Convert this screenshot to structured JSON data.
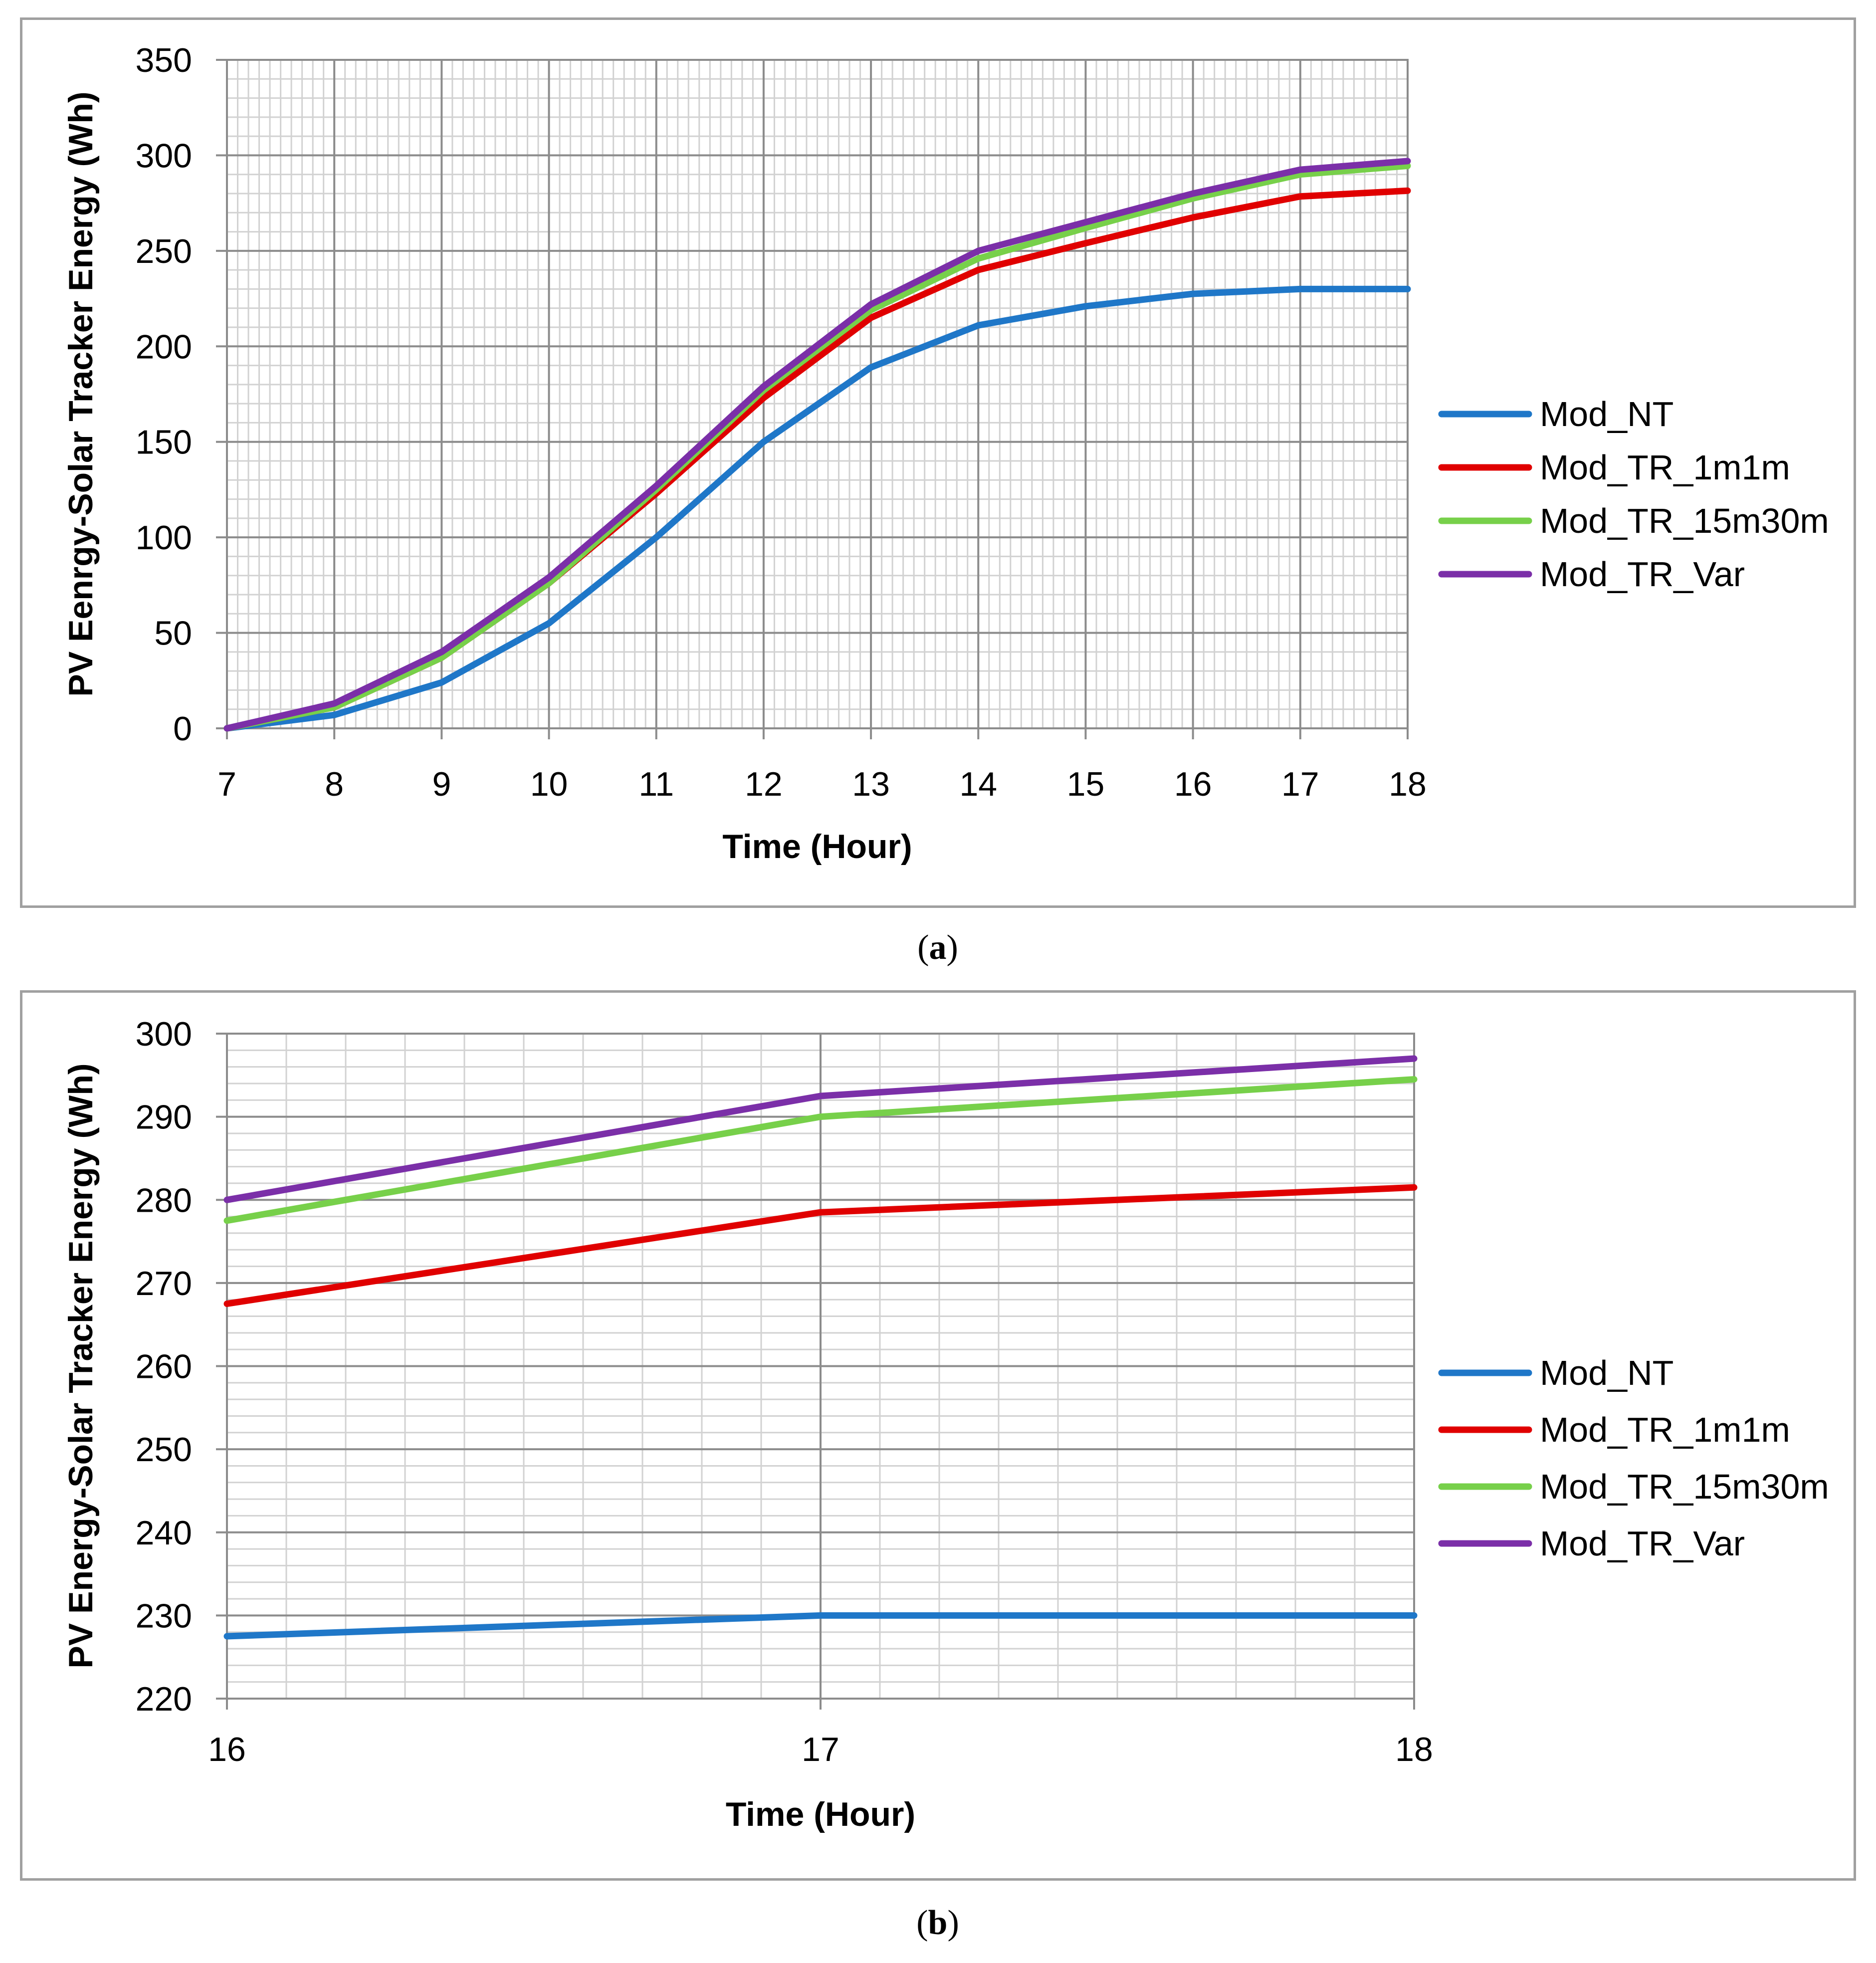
{
  "captions": {
    "a": "a",
    "b": "b"
  },
  "colors": {
    "Mod_NT": "#1f77c8",
    "Mod_TR_1m1m": "#e00000",
    "Mod_TR_15m30m": "#77d04a",
    "Mod_TR_Var": "#7b2fa8"
  },
  "chart_data": [
    {
      "type": "line",
      "xlabel": "Time (Hour)",
      "ylabel": "PV Eenrgy-Solar Tracker Energy (Wh)",
      "xlim": [
        7,
        18
      ],
      "ylim": [
        0,
        350
      ],
      "xticks": [
        "7",
        "8",
        "9",
        "10",
        "11",
        "12",
        "13",
        "14",
        "15",
        "16",
        "17",
        "18"
      ],
      "yticks": [
        "0",
        "50",
        "100",
        "150",
        "200",
        "250",
        "300",
        "350"
      ],
      "grid": "on",
      "legend": "right",
      "x": [
        7,
        8,
        9,
        10,
        11,
        12,
        13,
        14,
        15,
        16,
        17,
        18
      ],
      "series": [
        {
          "name": "Mod_NT",
          "values": [
            0,
            7,
            24,
            55,
            100,
            150,
            189,
            211,
            221,
            227.5,
            230,
            230
          ]
        },
        {
          "name": "Mod_TR_1m1m",
          "values": [
            0,
            11,
            37,
            76,
            123,
            173,
            215,
            240,
            254,
            267.5,
            278.5,
            281.5
          ]
        },
        {
          "name": "Mod_TR_15m30m",
          "values": [
            0,
            11,
            37,
            76,
            125,
            177,
            219,
            246,
            262,
            277.5,
            290,
            294.5
          ]
        },
        {
          "name": "Mod_TR_Var",
          "values": [
            0,
            13,
            40,
            79,
            127,
            179,
            222,
            250,
            265,
            280,
            292.5,
            297
          ]
        }
      ]
    },
    {
      "type": "line",
      "xlabel": "Time (Hour)",
      "ylabel": "PV Energy-Solar Tracker Energy (Wh)",
      "xlim": [
        16,
        18
      ],
      "ylim": [
        220,
        300
      ],
      "xticks": [
        "16",
        "17",
        "18"
      ],
      "yticks": [
        "220",
        "230",
        "240",
        "250",
        "260",
        "270",
        "280",
        "290",
        "300"
      ],
      "grid": "on",
      "legend": "right",
      "x": [
        16,
        17,
        18
      ],
      "series": [
        {
          "name": "Mod_NT",
          "values": [
            227.5,
            230,
            230
          ]
        },
        {
          "name": "Mod_TR_1m1m",
          "values": [
            267.5,
            278.5,
            281.5
          ]
        },
        {
          "name": "Mod_TR_15m30m",
          "values": [
            277.5,
            290,
            294.5
          ]
        },
        {
          "name": "Mod_TR_Var",
          "values": [
            280,
            292.5,
            297
          ]
        }
      ]
    }
  ]
}
